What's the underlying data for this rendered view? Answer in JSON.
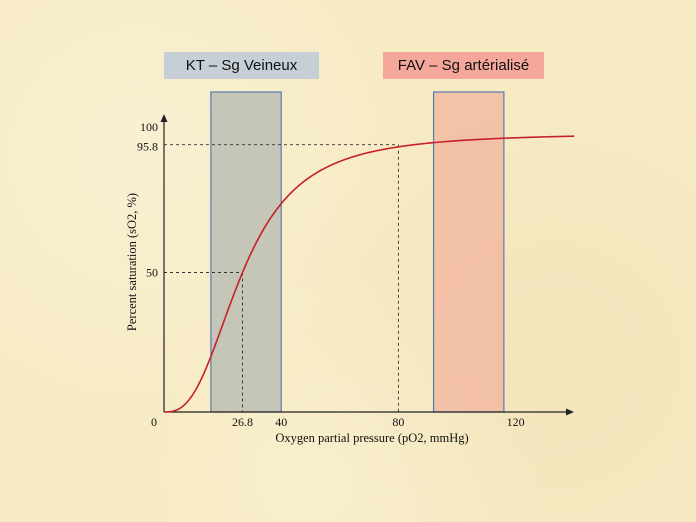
{
  "boxes": {
    "venous_label": "KT – Sg Veineux",
    "arterial_label": "FAV – Sg artérialisé"
  },
  "chart_data": {
    "type": "line",
    "title": "",
    "xlabel": "Oxygen partial pressure (pO2, mmHg)",
    "ylabel": "Percent saturation (sO2, %)",
    "xlim": [
      0,
      140
    ],
    "ylim": [
      0,
      100
    ],
    "x_ticks": [
      "0",
      "26.8",
      "40",
      "80",
      "120"
    ],
    "x_tick_values": [
      0,
      26.8,
      40,
      80,
      120
    ],
    "y_ticks": [
      "50",
      "95.8",
      "100"
    ],
    "y_tick_values": [
      50,
      95.8,
      100
    ],
    "curve": {
      "name": "",
      "p50": 26.8,
      "hill_n": 2.7,
      "color": "#c8202a",
      "x": [
        0,
        5,
        10,
        15,
        20,
        26.8,
        30,
        35,
        40,
        50,
        60,
        70,
        80,
        90,
        100,
        110,
        120,
        130,
        140
      ],
      "y": [
        0,
        1,
        6,
        17,
        31,
        50,
        58,
        67,
        75,
        84,
        90,
        93,
        95.8,
        97,
        97.7,
        98.2,
        98.6,
        98.9,
        99.1
      ]
    },
    "reference_points": [
      {
        "x": 26.8,
        "y": 50
      },
      {
        "x": 80,
        "y": 95.8
      }
    ],
    "shaded_ranges": [
      {
        "label": "KT – Sg Veineux",
        "x_range": [
          16,
          40
        ],
        "color": "#9aa6a8"
      },
      {
        "label": "FAV – Sg artérialisé",
        "x_range": [
          92,
          116
        ],
        "color": "#f0a090"
      }
    ],
    "grid": false
  }
}
